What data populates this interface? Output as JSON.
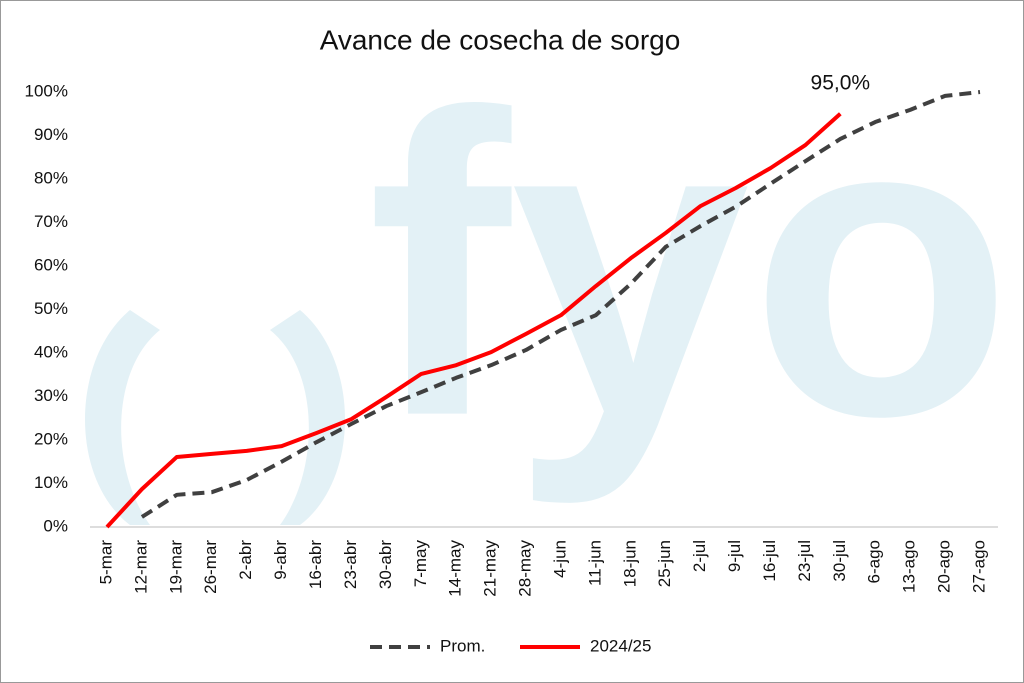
{
  "chart_data": {
    "type": "line",
    "title": "Avance de cosecha de sorgo",
    "watermark": "fyo",
    "categories": [
      "5-mar",
      "12-mar",
      "19-mar",
      "26-mar",
      "2-abr",
      "9-abr",
      "16-abr",
      "23-abr",
      "30-abr",
      "7-may",
      "14-may",
      "21-may",
      "28-may",
      "4-jun",
      "11-jun",
      "18-jun",
      "25-jun",
      "2-jul",
      "9-jul",
      "16-jul",
      "23-jul",
      "30-jul",
      "6-ago",
      "13-ago",
      "20-ago",
      "27-ago"
    ],
    "series": [
      {
        "name": "Prom.",
        "color": "#404040",
        "dashed": true,
        "values": [
          null,
          2.3,
          7.4,
          8,
          10.8,
          15,
          19.5,
          23.7,
          27.8,
          31,
          34.3,
          37.2,
          40.7,
          45.3,
          48.7,
          55.9,
          64.4,
          69.2,
          73.6,
          78.9,
          84.1,
          89.2,
          93.1,
          95.9,
          99.1,
          100
        ]
      },
      {
        "name": "2024/25",
        "color": "#ff0000",
        "dashed": false,
        "values": [
          0,
          8.7,
          16.1,
          16.8,
          17.5,
          18.6,
          21.6,
          24.8,
          29.9,
          35.2,
          37.2,
          40.2,
          44.4,
          48.7,
          55.4,
          61.8,
          67.6,
          73.8,
          77.9,
          82.5,
          87.8,
          95,
          null,
          null,
          null,
          null
        ],
        "value_labels": [
          null,
          null,
          null,
          null,
          null,
          null,
          null,
          null,
          null,
          null,
          null,
          null,
          null,
          null,
          null,
          null,
          null,
          null,
          null,
          null,
          null,
          "95,0%",
          null,
          null,
          null,
          null
        ]
      }
    ],
    "ylim": [
      0,
      100
    ],
    "yticks": [
      {
        "value": 0,
        "label": "0%"
      },
      {
        "value": 10,
        "label": "10%"
      },
      {
        "value": 20,
        "label": "20%"
      },
      {
        "value": 30,
        "label": "30%"
      },
      {
        "value": 40,
        "label": "40%"
      },
      {
        "value": 50,
        "label": "50%"
      },
      {
        "value": 60,
        "label": "60%"
      },
      {
        "value": 70,
        "label": "70%"
      },
      {
        "value": 80,
        "label": "80%"
      },
      {
        "value": 90,
        "label": "90%"
      },
      {
        "value": 100,
        "label": "100%"
      }
    ],
    "grid": false,
    "legend": "bottom"
  }
}
